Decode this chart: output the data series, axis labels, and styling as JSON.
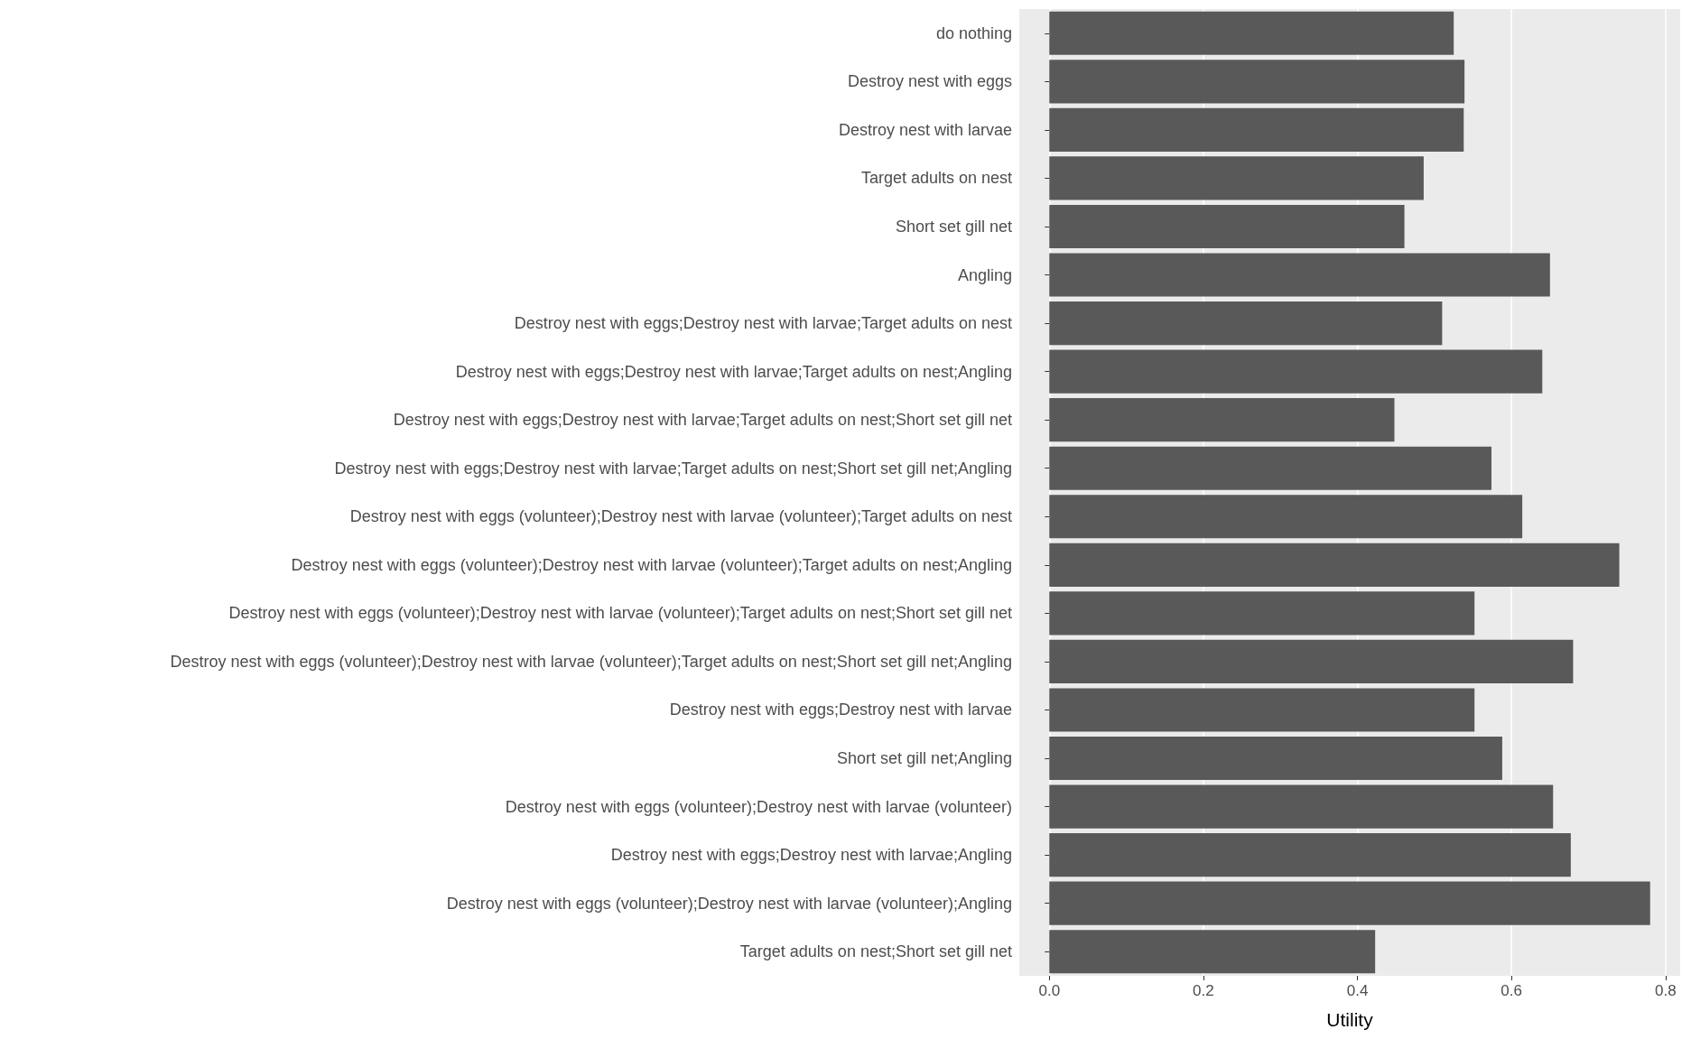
{
  "chart_data": {
    "type": "bar",
    "orientation": "horizontal",
    "xlabel": "Utility",
    "categories": [
      "do nothing",
      "Destroy nest with eggs",
      "Destroy nest with larvae",
      "Target adults on nest",
      "Short set gill net",
      "Angling",
      "Destroy nest with eggs;Destroy nest with larvae;Target adults on nest",
      "Destroy nest with eggs;Destroy nest with larvae;Target adults on nest;Angling",
      "Destroy nest with eggs;Destroy nest with larvae;Target adults on nest;Short set gill net",
      "Destroy nest with eggs;Destroy nest with larvae;Target adults on nest;Short set gill net;Angling",
      "Destroy nest with eggs (volunteer);Destroy nest with larvae (volunteer);Target adults on nest",
      "Destroy nest with eggs (volunteer);Destroy nest with larvae (volunteer);Target adults on nest;Angling",
      "Destroy nest with eggs (volunteer);Destroy nest with larvae (volunteer);Target adults on nest;Short set gill net",
      "Destroy nest with eggs (volunteer);Destroy nest with larvae (volunteer);Target adults on nest;Short set gill net;Angling",
      "Destroy nest with eggs;Destroy nest with larvae",
      "Short set gill net;Angling",
      "Destroy nest with eggs (volunteer);Destroy nest with larvae (volunteer)",
      "Destroy nest with eggs;Destroy nest with larvae;Angling",
      "Destroy nest with eggs (volunteer);Destroy nest with larvae (volunteer);Angling",
      "Target adults on nest;Short set gill net"
    ],
    "values": [
      0.525,
      0.539,
      0.538,
      0.486,
      0.461,
      0.65,
      0.51,
      0.64,
      0.448,
      0.574,
      0.614,
      0.74,
      0.552,
      0.68,
      0.552,
      0.588,
      0.654,
      0.677,
      0.78,
      0.423
    ],
    "color": "#595959",
    "xlim": [
      -0.039,
      0.819
    ],
    "xticks": [
      {
        "value": 0,
        "label": "0.0"
      },
      0.2,
      0.4,
      0.6,
      0.8
    ],
    "grid": "x"
  }
}
